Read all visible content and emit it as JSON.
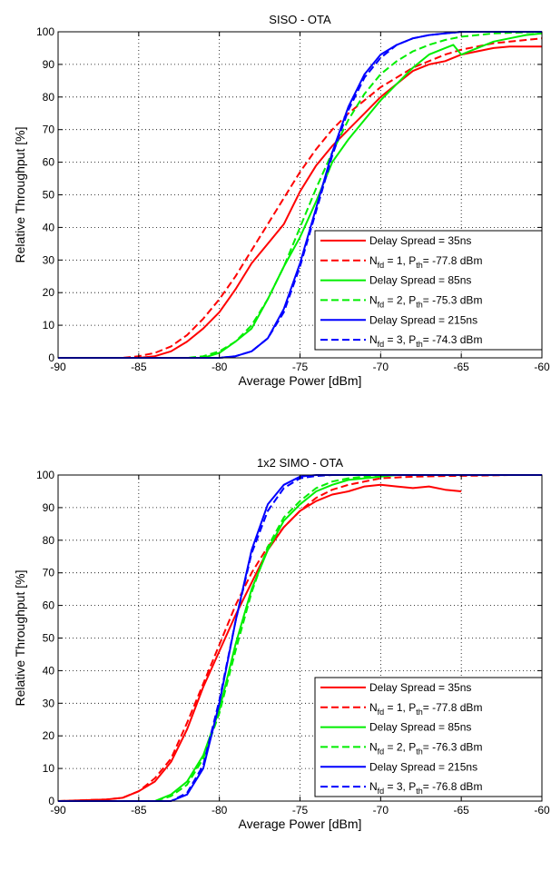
{
  "chart_data": [
    {
      "type": "line",
      "title": "SISO - OTA",
      "xlabel": "Average Power [dBm]",
      "ylabel": "Relative Throughput [%]",
      "xlim": [
        -90,
        -60
      ],
      "ylim": [
        0,
        100
      ],
      "xticks": [
        -90,
        -85,
        -80,
        -75,
        -70,
        -65,
        -60
      ],
      "yticks": [
        0,
        10,
        20,
        30,
        40,
        50,
        60,
        70,
        80,
        90,
        100
      ],
      "grid": true,
      "legend_position": "bottom-right",
      "series": [
        {
          "name": "Delay Spread = 35ns",
          "color": "#ff0000",
          "dash": "solid",
          "x": [
            -90,
            -85,
            -84,
            -83,
            -82,
            -81,
            -80,
            -79,
            -78,
            -77,
            -76,
            -75,
            -74,
            -73,
            -72,
            -71,
            -70,
            -69,
            -68,
            -67,
            -66,
            -65,
            -64,
            -63,
            -62,
            -61,
            -60
          ],
          "y": [
            0,
            0,
            0.5,
            2,
            5,
            9,
            14,
            21,
            29,
            35,
            41,
            51,
            59,
            65,
            70,
            75,
            80,
            84,
            88,
            90,
            91,
            93,
            94,
            95,
            95.5,
            95.5,
            95.5
          ]
        },
        {
          "name": "N_fd = 1, P_th = -77.8 dBm",
          "color": "#ff0000",
          "dash": "dashed",
          "x": [
            -90,
            -86,
            -85,
            -84,
            -83,
            -82,
            -81,
            -80,
            -79,
            -78,
            -77,
            -76,
            -75,
            -74,
            -73,
            -72,
            -71,
            -70,
            -69,
            -68,
            -67,
            -66,
            -65,
            -64,
            -63,
            -62,
            -61,
            -60
          ],
          "y": [
            0,
            0,
            0.5,
            1.5,
            3.5,
            7,
            12,
            18,
            25,
            33,
            41,
            49,
            57,
            64,
            70,
            75,
            79,
            83,
            86,
            89,
            91,
            93,
            94.5,
            95.5,
            96.5,
            97,
            97.5,
            98
          ]
        },
        {
          "name": "Delay Spread = 85ns",
          "color": "#00ee00",
          "dash": "solid",
          "x": [
            -90,
            -81,
            -80,
            -79,
            -78,
            -77,
            -76,
            -75,
            -74,
            -73,
            -72,
            -71,
            -70,
            -69,
            -68,
            -67,
            -66,
            -65.5,
            -65,
            -64,
            -63,
            -62,
            -61,
            -60
          ],
          "y": [
            0,
            0,
            1.5,
            5,
            9,
            18,
            28,
            37,
            48,
            60,
            67,
            73,
            79,
            84,
            89,
            93,
            95,
            96,
            93,
            95,
            97,
            98,
            99,
            99.5
          ]
        },
        {
          "name": "N_fd = 2, P_th = -75.3 dBm",
          "color": "#00ee00",
          "dash": "dashed",
          "x": [
            -90,
            -82,
            -81,
            -80,
            -79,
            -78,
            -77,
            -76,
            -75,
            -74,
            -73,
            -72,
            -71,
            -70,
            -69,
            -68,
            -67,
            -66,
            -65,
            -64,
            -63,
            -62,
            -61,
            -60
          ],
          "y": [
            0,
            0,
            0.5,
            2,
            5,
            10,
            18,
            28,
            40,
            52,
            63,
            73,
            81,
            87,
            91,
            94,
            96,
            97.5,
            98.5,
            99,
            99.5,
            99.7,
            99.8,
            100
          ]
        },
        {
          "name": "Delay Spread = 215ns",
          "color": "#0000ff",
          "dash": "solid",
          "x": [
            -90,
            -80,
            -79,
            -78,
            -77,
            -76,
            -75,
            -74,
            -73,
            -72,
            -71,
            -70,
            -69,
            -68,
            -67,
            -66,
            -65,
            -64,
            -63,
            -62,
            -61,
            -60
          ],
          "y": [
            0,
            0,
            0.5,
            2,
            6,
            15,
            29,
            46,
            63,
            77,
            87,
            93,
            96,
            98,
            99,
            99.5,
            100,
            100,
            100,
            100,
            100,
            100
          ]
        },
        {
          "name": "N_fd = 3, P_th = -74.3 dBm",
          "color": "#0000ff",
          "dash": "dashed",
          "x": [
            -90,
            -80,
            -79,
            -78,
            -77,
            -76,
            -75,
            -74,
            -73,
            -72,
            -71,
            -70,
            -69,
            -68,
            -67,
            -66,
            -65,
            -64,
            -63,
            -62,
            -61,
            -60
          ],
          "y": [
            0,
            0,
            0.5,
            2,
            6,
            14,
            28,
            45,
            62,
            76,
            86,
            92,
            96,
            98,
            99,
            99.5,
            100,
            100,
            100,
            100,
            100,
            100
          ]
        }
      ],
      "legend_entries": [
        {
          "text": "Delay Spread = 35ns"
        },
        {
          "N": "N",
          "N_sub": "fd",
          "N_val": " = 1, P",
          "P_sub": "th",
          "rest": "= -77.8 dBm"
        },
        {
          "text": "Delay Spread = 85ns"
        },
        {
          "N": "N",
          "N_sub": "fd",
          "N_val": " = 2, P",
          "P_sub": "th",
          "rest": "= -75.3 dBm"
        },
        {
          "text": "Delay Spread = 215ns"
        },
        {
          "N": "N",
          "N_sub": "fd",
          "N_val": " = 3, P",
          "P_sub": "th",
          "rest": "= -74.3 dBm"
        }
      ]
    },
    {
      "type": "line",
      "title": "1x2 SIMO - OTA",
      "xlabel": "Average Power [dBm]",
      "ylabel": "Relative Throughput [%]",
      "xlim": [
        -90,
        -60
      ],
      "ylim": [
        0,
        100
      ],
      "xticks": [
        -90,
        -85,
        -80,
        -75,
        -70,
        -65,
        -60
      ],
      "yticks": [
        0,
        10,
        20,
        30,
        40,
        50,
        60,
        70,
        80,
        90,
        100
      ],
      "grid": true,
      "legend_position": "bottom-right",
      "series": [
        {
          "name": "Delay Spread = 35ns",
          "color": "#ff0000",
          "dash": "solid",
          "x": [
            -90,
            -87,
            -86,
            -85,
            -84,
            -83,
            -82,
            -81,
            -80,
            -79,
            -78,
            -77,
            -76,
            -75,
            -74,
            -73,
            -72,
            -71,
            -70,
            -69,
            -68,
            -67,
            -66,
            -65
          ],
          "y": [
            0,
            0.5,
            1,
            3,
            6,
            12,
            22,
            35,
            46,
            57,
            67,
            77,
            84,
            89,
            92,
            94,
            95,
            96.5,
            97,
            96.5,
            96,
            96.5,
            95.5,
            95
          ]
        },
        {
          "name": "N_fd = 1, P_th = -77.8 dBm",
          "color": "#ff0000",
          "dash": "dashed",
          "x": [
            -90,
            -87,
            -86,
            -85,
            -84,
            -83,
            -82,
            -81,
            -80,
            -79,
            -78,
            -77,
            -76,
            -75,
            -74,
            -73,
            -72,
            -71,
            -70,
            -68,
            -66,
            -64,
            -62,
            -60
          ],
          "y": [
            0,
            0.5,
            1,
            3,
            7,
            13,
            24,
            36,
            48,
            60,
            70,
            78,
            84,
            89,
            93,
            95.5,
            97,
            98,
            99,
            99.5,
            99.7,
            99.8,
            100,
            100
          ]
        },
        {
          "name": "Delay Spread = 85ns",
          "color": "#00ee00",
          "dash": "solid",
          "x": [
            -90,
            -84,
            -83,
            -82,
            -81,
            -80,
            -79,
            -78,
            -77,
            -76,
            -75,
            -74,
            -73,
            -72,
            -71,
            -70,
            -69,
            -68,
            -66,
            -64,
            -62,
            -60
          ],
          "y": [
            0,
            0,
            2,
            6,
            14,
            28,
            48,
            65,
            77,
            86,
            91,
            95,
            97,
            98.5,
            99,
            99.5,
            100,
            100,
            100,
            100,
            100,
            100
          ]
        },
        {
          "name": "N_fd = 2, P_th = -76.3 dBm",
          "color": "#00ee00",
          "dash": "dashed",
          "x": [
            -90,
            -84,
            -83,
            -82,
            -81,
            -80,
            -79,
            -78,
            -77,
            -76,
            -75,
            -74,
            -73,
            -72,
            -71,
            -70,
            -69,
            -68,
            -66,
            -64,
            -62,
            -60
          ],
          "y": [
            0,
            0,
            1.5,
            5,
            13,
            27,
            46,
            64,
            78,
            87,
            92,
            96,
            98,
            99,
            99.5,
            100,
            100,
            100,
            100,
            100,
            100,
            100
          ]
        },
        {
          "name": "Delay Spread = 215ns",
          "color": "#0000ff",
          "dash": "solid",
          "x": [
            -90,
            -83,
            -82,
            -81,
            -80,
            -79,
            -78,
            -77,
            -76,
            -75,
            -74,
            -73,
            -72,
            -71,
            -70,
            -68,
            -66,
            -64,
            -62,
            -60
          ],
          "y": [
            0,
            0,
            2,
            10,
            30,
            55,
            77,
            91,
            97,
            99.5,
            100,
            100,
            100,
            100,
            100,
            100,
            100,
            100,
            100,
            100
          ]
        },
        {
          "name": "N_fd = 3, P_th = -76.8 dBm",
          "color": "#0000ff",
          "dash": "dashed",
          "x": [
            -90,
            -83,
            -82,
            -81,
            -80,
            -79,
            -78,
            -77,
            -76,
            -75,
            -74,
            -73,
            -72,
            -71,
            -70,
            -68,
            -66,
            -64,
            -62,
            -60
          ],
          "y": [
            0,
            0,
            2.5,
            11,
            31,
            55,
            76,
            89,
            96,
            99,
            99.7,
            100,
            100,
            100,
            100,
            100,
            100,
            100,
            100,
            100
          ]
        }
      ],
      "legend_entries": [
        {
          "text": "Delay Spread = 35ns"
        },
        {
          "N": "N",
          "N_sub": "fd",
          "N_val": " = 1, P",
          "P_sub": "th",
          "rest": "= -77.8 dBm"
        },
        {
          "text": "Delay Spread = 85ns"
        },
        {
          "N": "N",
          "N_sub": "fd",
          "N_val": " = 2, P",
          "P_sub": "th",
          "rest": "= -76.3 dBm"
        },
        {
          "text": "Delay Spread = 215ns"
        },
        {
          "N": "N",
          "N_sub": "fd",
          "N_val": " = 3, P",
          "P_sub": "th",
          "rest": "= -76.8 dBm"
        }
      ]
    }
  ]
}
